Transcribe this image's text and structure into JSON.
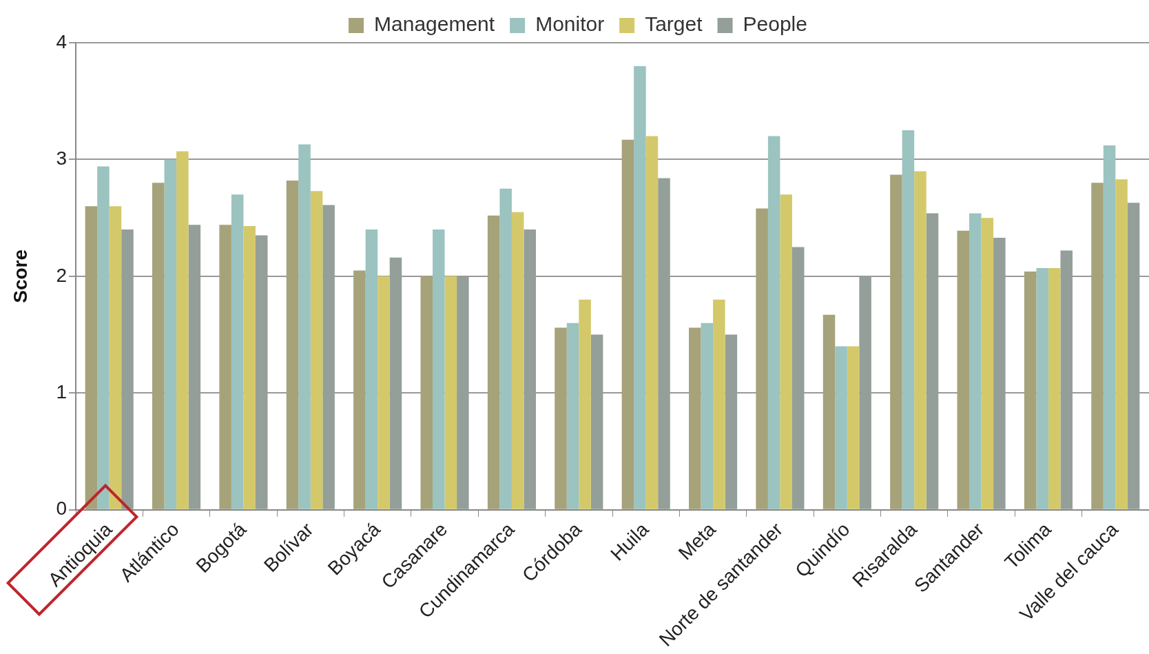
{
  "chart_data": {
    "type": "bar",
    "ylabel": "Score",
    "categories": [
      "Antioquia",
      "Atlántico",
      "Bogotá",
      "Bolívar",
      "Boyacá",
      "Casanare",
      "Cundinamarca",
      "Córdoba",
      "Huila",
      "Meta",
      "Norte de santander",
      "Quindío",
      "Risaralda",
      "Santander",
      "Tolima",
      "Valle del cauca"
    ],
    "series": [
      {
        "name": "Management",
        "color": "#a6a27a",
        "values": [
          2.6,
          2.8,
          2.44,
          2.82,
          2.05,
          2.0,
          2.52,
          1.56,
          3.17,
          1.56,
          2.58,
          1.67,
          2.87,
          2.39,
          2.04,
          2.8
        ]
      },
      {
        "name": "Monitor",
        "color": "#9bc3c0",
        "values": [
          2.94,
          3.0,
          2.7,
          3.13,
          2.4,
          2.4,
          2.75,
          1.6,
          3.8,
          1.6,
          3.2,
          1.4,
          3.25,
          2.54,
          2.07,
          3.12
        ]
      },
      {
        "name": "Target",
        "color": "#d4c96a",
        "values": [
          2.6,
          3.07,
          2.43,
          2.73,
          2.0,
          2.0,
          2.55,
          1.8,
          3.2,
          1.8,
          2.7,
          1.4,
          2.9,
          2.5,
          2.07,
          2.83
        ]
      },
      {
        "name": "People",
        "color": "#939f98",
        "values": [
          2.4,
          2.44,
          2.35,
          2.61,
          2.16,
          2.0,
          2.4,
          1.5,
          2.84,
          1.5,
          2.25,
          2.0,
          2.54,
          2.33,
          2.22,
          2.63
        ]
      }
    ],
    "ylim": [
      0,
      4
    ],
    "yticks": [
      0,
      1,
      2,
      3,
      4
    ],
    "grid": "y",
    "legend": "top"
  }
}
